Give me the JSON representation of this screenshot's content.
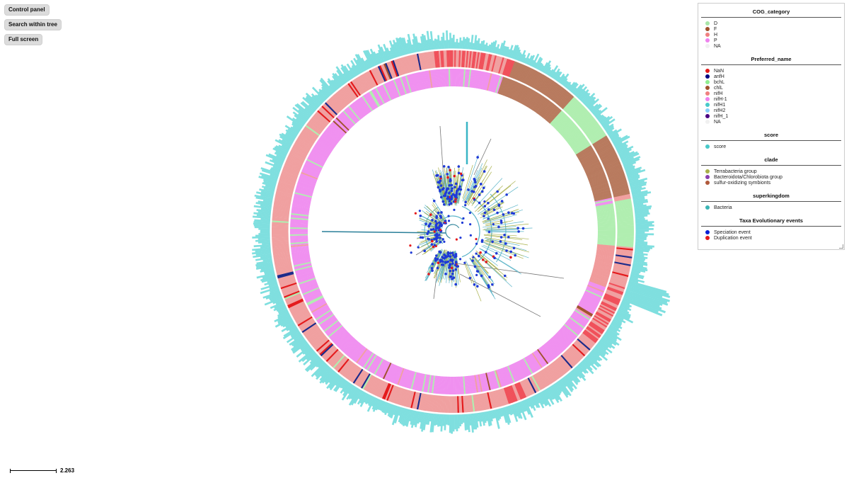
{
  "controls": {
    "control_panel": "Control panel",
    "search_within_tree": "Search within tree",
    "full_screen": "Full screen"
  },
  "legend": {
    "sections": [
      {
        "title": "COG_category",
        "items": [
          {
            "label": "D",
            "color": "#a8e6a8"
          },
          {
            "label": "F",
            "color": "#a0522d"
          },
          {
            "label": "H",
            "color": "#f08080"
          },
          {
            "label": "P",
            "color": "#ee82ee"
          },
          {
            "label": "NA",
            "color": "#f0f0f0"
          }
        ]
      },
      {
        "title": "Preferred_name",
        "items": [
          {
            "label": "NaN",
            "color": "#e41a1c"
          },
          {
            "label": "anfH",
            "color": "#000080"
          },
          {
            "label": "bchL",
            "color": "#90ee90"
          },
          {
            "label": "chlL",
            "color": "#a0522d"
          },
          {
            "label": "nifH",
            "color": "#f08080"
          },
          {
            "label": "nifH-1",
            "color": "#ee82ee"
          },
          {
            "label": "nifH1",
            "color": "#48c9c9"
          },
          {
            "label": "nifH2",
            "color": "#87cefa"
          },
          {
            "label": "nifH_1",
            "color": "#4b0082"
          },
          {
            "label": "NA",
            "color": "#f0f0f0"
          }
        ]
      },
      {
        "title": "score",
        "items": [
          {
            "label": "score",
            "color": "#48c9c9"
          }
        ]
      },
      {
        "title": "clade",
        "items": [
          {
            "label": "Terrabacteria group",
            "color": "#a8b04a"
          },
          {
            "label": "Bacteroidota/Chlorobiota group",
            "color": "#8a3fb0"
          },
          {
            "label": "sulfur-oxidizing symbionts",
            "color": "#b05a3c"
          }
        ]
      },
      {
        "title": "superkingdom",
        "items": [
          {
            "label": "Bacteria",
            "color": "#3bb5b5"
          }
        ]
      },
      {
        "title": "Taxa Evolutionary events",
        "items": [
          {
            "label": "Speciation event",
            "color": "#0a1fd6"
          },
          {
            "label": "Duplication event",
            "color": "#e41a1c"
          }
        ]
      }
    ]
  },
  "scale": {
    "label": "2.263"
  },
  "colors": {
    "score_bar": "#7fdfdf",
    "pref_base": "#f0a0a0",
    "cog_base": "#f090f0",
    "branch": "#5ab4c8",
    "branch_dark": "#3a8aa0",
    "speciation": "#1f3ad6",
    "duplication": "#e41a1c"
  }
}
